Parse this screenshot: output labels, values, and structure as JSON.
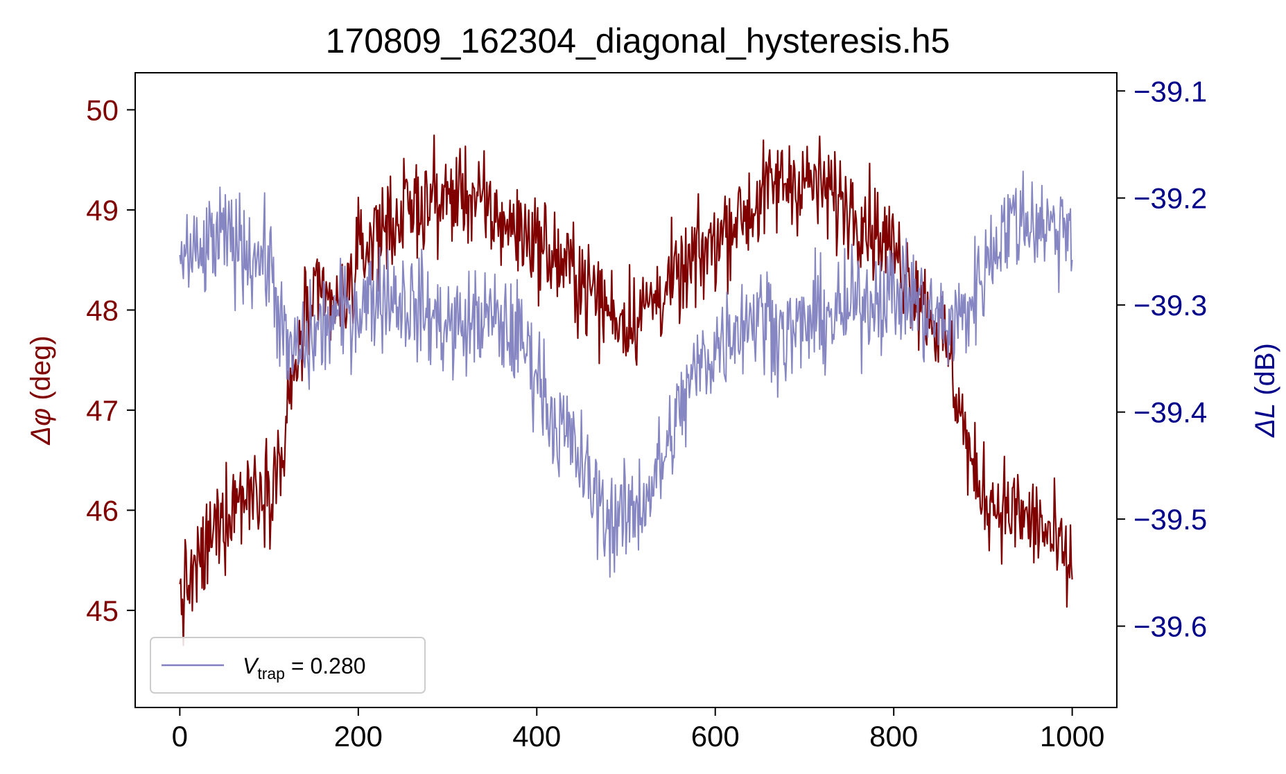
{
  "chart_data": {
    "type": "line",
    "title": "170809_162304_diagonal_hysteresis.h5",
    "x_ticks": [
      0,
      200,
      400,
      600,
      800,
      1000
    ],
    "xlim": [
      -50,
      1050
    ],
    "left_axis": {
      "label_symbol": "Δφ",
      "label_unit": " (deg)",
      "ticks": [
        45,
        46,
        47,
        48,
        49,
        50
      ],
      "ylim": [
        44.03,
        50.37
      ],
      "color": "#800000"
    },
    "right_axis": {
      "label_symbol": "ΔL",
      "label_unit": " (dB)",
      "ticks": [
        -39.1,
        -39.2,
        -39.3,
        -39.4,
        -39.5,
        -39.6
      ],
      "tick_labels": [
        "−39.1",
        "−39.2",
        "−39.3",
        "−39.4",
        "−39.5",
        "−39.6"
      ],
      "ylim": [
        -39.676,
        -39.083
      ],
      "color": "#00008b"
    },
    "legend": {
      "placement": "lower-left",
      "entries": [
        {
          "label_prefix": "V",
          "label_sub": "trap",
          "label_suffix": " = 0.280",
          "color": "#8080c0"
        }
      ]
    },
    "series": [
      {
        "name": "Δφ",
        "axis": "left",
        "color": "#800000",
        "noise": 0.55,
        "x": [
          0,
          20,
          40,
          60,
          80,
          100,
          115,
          125,
          140,
          160,
          180,
          200,
          220,
          240,
          260,
          280,
          300,
          320,
          340,
          360,
          380,
          400,
          420,
          440,
          460,
          480,
          500,
          520,
          540,
          560,
          580,
          600,
          620,
          640,
          660,
          680,
          700,
          720,
          740,
          760,
          780,
          800,
          820,
          840,
          860,
          875,
          890,
          910,
          930,
          950,
          970,
          990,
          1000
        ],
        "y": [
          45.1,
          45.4,
          45.8,
          46.1,
          46.2,
          46.3,
          46.5,
          47.2,
          47.9,
          48.1,
          48.0,
          48.5,
          48.8,
          48.9,
          49.0,
          49.1,
          49.1,
          49.2,
          49.0,
          48.9,
          48.8,
          48.7,
          48.5,
          48.4,
          48.2,
          48.0,
          47.9,
          48.0,
          48.2,
          48.3,
          48.5,
          48.7,
          48.9,
          49.0,
          49.2,
          49.3,
          49.3,
          49.2,
          49.1,
          49.0,
          48.8,
          48.6,
          48.3,
          48.0,
          47.6,
          47.0,
          46.3,
          46.1,
          46.0,
          45.9,
          45.8,
          45.5,
          45.4
        ]
      },
      {
        "name": "ΔL",
        "axis": "right",
        "color": "#8080c0",
        "noise": 0.055,
        "x": [
          0,
          20,
          40,
          60,
          80,
          100,
          110,
          120,
          140,
          160,
          180,
          200,
          220,
          240,
          260,
          280,
          300,
          320,
          340,
          360,
          380,
          400,
          420,
          440,
          460,
          480,
          500,
          520,
          540,
          560,
          580,
          600,
          620,
          640,
          660,
          680,
          700,
          720,
          740,
          760,
          780,
          800,
          820,
          840,
          860,
          880,
          900,
          920,
          940,
          960,
          980,
          1000
        ],
        "y": [
          -39.25,
          -39.26,
          -39.24,
          -39.24,
          -39.25,
          -39.26,
          -39.3,
          -39.35,
          -39.34,
          -39.32,
          -39.31,
          -39.3,
          -39.29,
          -39.29,
          -39.3,
          -39.31,
          -39.32,
          -39.32,
          -39.31,
          -39.32,
          -39.33,
          -39.36,
          -39.41,
          -39.43,
          -39.47,
          -39.5,
          -39.5,
          -39.48,
          -39.45,
          -39.4,
          -39.36,
          -39.34,
          -39.32,
          -39.31,
          -39.31,
          -39.33,
          -39.32,
          -39.31,
          -39.31,
          -39.3,
          -39.29,
          -39.29,
          -39.29,
          -39.31,
          -39.32,
          -39.31,
          -39.27,
          -39.23,
          -39.22,
          -39.22,
          -39.23,
          -39.22
        ]
      }
    ]
  }
}
